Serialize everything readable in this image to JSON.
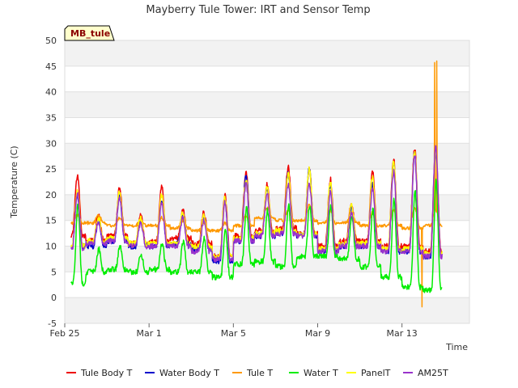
{
  "chart_data": {
    "type": "line",
    "title": "Mayberry Tule Tower: IRT and Sensor Temp",
    "xlabel": "Time",
    "ylabel": "Temperature (C)",
    "site_tag": "MB_tule",
    "ylim": [
      -5,
      50
    ],
    "yticks": [
      -5,
      0,
      5,
      10,
      15,
      20,
      25,
      30,
      35,
      40,
      45,
      50
    ],
    "xlim": [
      0,
      19.2
    ],
    "xticks": [
      {
        "x": 0,
        "label": "Feb 25"
      },
      {
        "x": 4,
        "label": "Mar 1"
      },
      {
        "x": 8,
        "label": "Mar 5"
      },
      {
        "x": 12,
        "label": "Mar 9"
      },
      {
        "x": 16,
        "label": "Mar 13"
      }
    ],
    "x_start": 0.3,
    "x_end": 17.9,
    "points_per_day": 48,
    "legend_position": "bottom",
    "series": [
      {
        "name": "Tule Body T",
        "color": "#ee0000",
        "daily_min": [
          12,
          11,
          12,
          10.5,
          11,
          11.5,
          10.5,
          8,
          12,
          13,
          13.5,
          12.5,
          10,
          11,
          11,
          10,
          10,
          9
        ],
        "daily_max": [
          23.5,
          16,
          21.5,
          16,
          21.5,
          17,
          16.5,
          20,
          24.5,
          22,
          25.5,
          25.5,
          23,
          18.5,
          24.5,
          27,
          29,
          29
        ]
      },
      {
        "name": "Water Body T",
        "color": "#0000cc",
        "daily_min": [
          10,
          10,
          11,
          10,
          10,
          10.5,
          9.5,
          7,
          11,
          12,
          12.5,
          12,
          9,
          10,
          10,
          9,
          9,
          8
        ],
        "daily_max": [
          20,
          15,
          20,
          15,
          19,
          16,
          15.5,
          19,
          24,
          21,
          24,
          25,
          22,
          17.5,
          22,
          26,
          28,
          28
        ]
      },
      {
        "name": "Tule T",
        "color": "#ff9900",
        "daily_min": [
          14.5,
          14.5,
          14,
          14,
          14,
          13.5,
          13,
          13,
          14,
          15.5,
          15,
          15,
          14.5,
          14.5,
          14,
          14,
          13.5,
          14
        ],
        "daily_max": [
          16,
          16,
          15.5,
          15,
          15.5,
          15,
          14.5,
          14.5,
          16,
          17.5,
          17,
          18,
          17,
          16.5,
          16.5,
          17,
          17.5,
          17
        ]
      },
      {
        "name": "Water T",
        "color": "#00ee00",
        "daily_min": [
          2.8,
          5,
          5.5,
          5,
          5.5,
          5,
          5,
          4,
          6.5,
          7,
          6,
          8,
          8,
          7.5,
          6,
          4,
          2,
          1.5
        ],
        "daily_max": [
          18,
          9.5,
          10,
          8.5,
          10.5,
          11,
          11.5,
          13,
          17.5,
          17,
          18,
          18,
          18,
          16,
          17,
          19,
          21,
          23
        ]
      },
      {
        "name": "PanelT",
        "color": "#ffff00",
        "daily_min": [
          10,
          11,
          11.5,
          10.5,
          10.5,
          10.5,
          10,
          8,
          11.5,
          12.5,
          13,
          12.5,
          9.5,
          10.5,
          10.5,
          9.5,
          9.5,
          8.5
        ],
        "daily_max": [
          21,
          15.5,
          20.5,
          15.5,
          20,
          16.5,
          16,
          19.5,
          23,
          21.5,
          24,
          25,
          22.5,
          18,
          23.5,
          26.5,
          28.5,
          28.5
        ]
      },
      {
        "name": "AM25T",
        "color": "#9933cc",
        "daily_min": [
          9.5,
          10.5,
          11,
          10,
          10,
          10,
          9,
          7.5,
          11,
          12,
          12.5,
          12,
          9,
          10,
          10,
          9,
          9,
          8
        ],
        "daily_max": [
          20,
          14.5,
          19.5,
          14.5,
          18.5,
          15.5,
          15,
          18.5,
          22,
          20,
          22,
          22,
          20.5,
          16.5,
          21,
          24.5,
          28,
          29.5
        ]
      }
    ],
    "events": [
      {
        "series": "Tule T",
        "x": 16.45,
        "y": 18
      },
      {
        "series": "Tule T",
        "x": 16.95,
        "y": -1.8
      },
      {
        "series": "Tule T",
        "x": 17.55,
        "y": 45.7
      },
      {
        "series": "Tule T",
        "x": 17.65,
        "y": 46
      }
    ]
  }
}
